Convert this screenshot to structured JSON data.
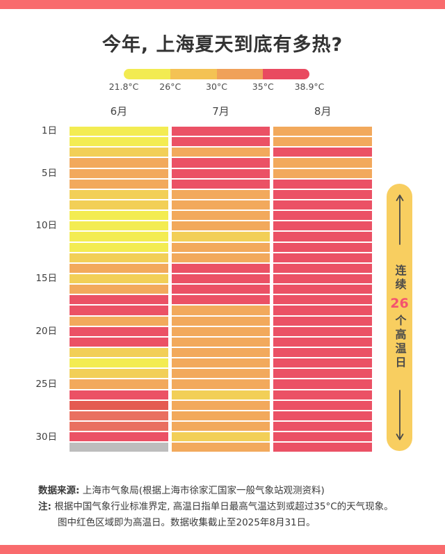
{
  "title": "今年, 上海夏天到底有多热?",
  "day_labels": [
    "1日",
    "5日",
    "10日",
    "15日",
    "20日",
    "25日",
    "30日"
  ],
  "annotation": {
    "prefix": "连续",
    "number": "26",
    "suffix": "个高温日",
    "number_color": "#F4536E",
    "pill_color": "#F8CE60"
  },
  "theme": {
    "border_bar_color": "#F96B6D",
    "title_color": "#333333",
    "empty_cell_color": "#BDBDBD"
  },
  "footer": {
    "source_label": "数据来源:",
    "source_text": " 上海市气象局(根据上海市徐家汇国家一般气象站观测资料)",
    "note_label": "注:",
    "note_text": " 根据中国气象行业标准界定, 高温日指单日最高气温达到或超过35°C的天气现象。",
    "note_text2": "图中红色区域即为高温日。数据收集截止至2025年8月31日。"
  },
  "chart_data": {
    "type": "heatmap",
    "title": "今年, 上海夏天到底有多热?",
    "unit": "°C",
    "scale_ticks": [
      "21.8°C",
      "26°C",
      "30°C",
      "35°C",
      "38.9°C"
    ],
    "scale_colors": [
      "#F2EB52",
      "#F4C254",
      "#F0A159",
      "#E94A60"
    ],
    "columns": [
      "6月",
      "7月",
      "8月"
    ],
    "rows": 31,
    "day_label_days": [
      1,
      5,
      10,
      15,
      20,
      25,
      30
    ],
    "consecutive_hot_days": 26,
    "palette": {
      "yellow": "#F3EC52",
      "amber": "#F2CF57",
      "orange": "#F2A95C",
      "red": "#EB5165",
      "deep_salmon": "#E45B52",
      "salmon": "#E97060",
      "empty": "#BDBDBD"
    },
    "cells": {
      "6月": [
        "yellow",
        "yellow",
        "amber",
        "orange",
        "orange",
        "orange",
        "amber",
        "amber",
        "yellow",
        "yellow",
        "yellow",
        "yellow",
        "amber",
        "orange",
        "amber",
        "orange",
        "red",
        "red",
        "orange",
        "red",
        "red",
        "amber",
        "yellow",
        "amber",
        "orange",
        "red",
        "deep_salmon",
        "salmon",
        "salmon",
        "red",
        "empty"
      ],
      "7月": [
        "red",
        "red",
        "orange",
        "red",
        "red",
        "red",
        "orange",
        "orange",
        "orange",
        "orange",
        "amber",
        "orange",
        "orange",
        "red",
        "red",
        "red",
        "red",
        "orange",
        "orange",
        "orange",
        "orange",
        "orange",
        "orange",
        "orange",
        "orange",
        "amber",
        "orange",
        "orange",
        "orange",
        "amber",
        "orange"
      ],
      "8月": [
        "orange",
        "orange",
        "red",
        "orange",
        "orange",
        "red",
        "red",
        "red",
        "red",
        "red",
        "red",
        "red",
        "red",
        "red",
        "red",
        "red",
        "red",
        "red",
        "red",
        "red",
        "red",
        "red",
        "red",
        "red",
        "red",
        "red",
        "red",
        "red",
        "red",
        "red",
        "red"
      ]
    }
  }
}
